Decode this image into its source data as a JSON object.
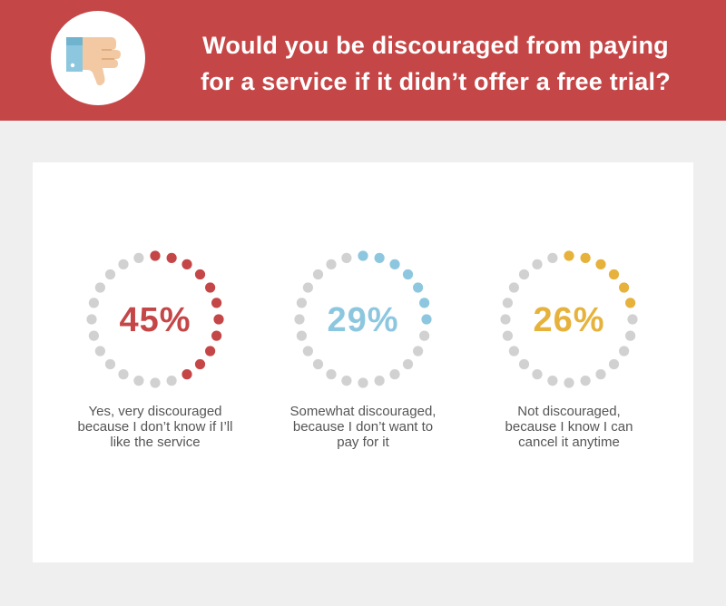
{
  "header": {
    "title_lines": [
      "Would you be discouraged from paying",
      "for a service if it didn’t offer a free trial?"
    ],
    "icon": "thumbs-down-icon"
  },
  "colors": {
    "header_bg": "#c54647",
    "inactive_dot": "#d1d1d1"
  },
  "chart_data": {
    "type": "radial-dot-gauge",
    "title": "Would you be discouraged from paying for a service if it didn’t offer a free trial?",
    "unit": "%",
    "items": [
      {
        "label": "45%",
        "value": 45,
        "color": "#c54647",
        "lines": [
          "Yes, very discouraged",
          "because I don’t know if I’ll",
          "like the service"
        ]
      },
      {
        "label": "29%",
        "value": 29,
        "color": "#8dc7df",
        "lines": [
          "Somewhat discouraged,",
          "because I don’t want to",
          "pay for it"
        ]
      },
      {
        "label": "26%",
        "value": 26,
        "color": "#e6b23c",
        "lines": [
          "Not discouraged,",
          "because I know I can",
          "cancel it anytime"
        ]
      }
    ]
  }
}
